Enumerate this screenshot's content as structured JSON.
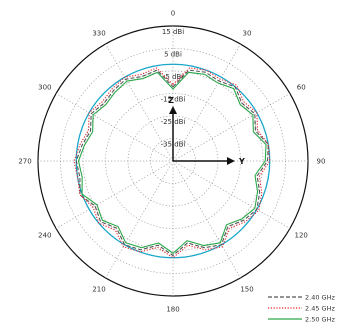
{
  "chart_data": {
    "type": "polar-line",
    "angular_unit": "deg",
    "angle_zero": "top",
    "angle_direction": "clockwise",
    "angle_ticks": [
      "0",
      "30",
      "60",
      "90",
      "120",
      "150",
      "180",
      "210",
      "240",
      "270",
      "300",
      "330"
    ],
    "angle_tick_values": [
      0,
      30,
      60,
      90,
      120,
      150,
      180,
      210,
      240,
      270,
      300,
      330
    ],
    "radial_unit": "dBi",
    "radial_range": [
      -45,
      15
    ],
    "radial_ticks": [
      15,
      5,
      -5,
      -15,
      -25,
      -35
    ],
    "radial_tick_labels": [
      "15 dBi",
      "5 dBi",
      "-5 dBi",
      "-15 dBi",
      "-25 dBi",
      "-35 dBi"
    ],
    "reference_circle": {
      "value": -2,
      "color": "#1aa7c9"
    },
    "axis_labels": {
      "up": "Z",
      "right": "Y"
    },
    "grid": true,
    "legend_position": "bottom-right",
    "series": [
      {
        "name": "2.40 GHz",
        "color": "#555555",
        "dash": "dashed",
        "angles": [
          0,
          10,
          20,
          30,
          40,
          50,
          60,
          70,
          80,
          90,
          100,
          110,
          120,
          130,
          140,
          150,
          160,
          170,
          180,
          190,
          200,
          210,
          220,
          230,
          240,
          250,
          260,
          270,
          280,
          290,
          300,
          310,
          320,
          330,
          340,
          350
        ],
        "values": [
          -12,
          -4,
          -3,
          -4,
          -2,
          -5,
          -3,
          -6,
          -2,
          -3,
          -7,
          -4,
          -2,
          -4,
          -7,
          -2,
          -4,
          -8,
          -3,
          -7,
          -3,
          -2,
          -6,
          -3,
          -5,
          -1,
          -3,
          -2,
          -4,
          -6,
          -3,
          -5,
          -4,
          -3,
          -5,
          -4
        ]
      },
      {
        "name": "2.45 GHz",
        "color": "#e0232a",
        "dash": "dotted",
        "angles": [
          0,
          10,
          20,
          30,
          40,
          50,
          60,
          70,
          80,
          90,
          100,
          110,
          120,
          130,
          140,
          150,
          160,
          170,
          180,
          190,
          200,
          210,
          220,
          230,
          240,
          250,
          260,
          270,
          280,
          290,
          300,
          310,
          320,
          330,
          340,
          350
        ],
        "values": [
          -11,
          -3,
          -2,
          -3,
          -1,
          -4,
          -2,
          -5,
          -2,
          -2,
          -6,
          -3,
          -1,
          -3,
          -6,
          -1,
          -3,
          -7,
          -2,
          -6,
          -2,
          -1,
          -5,
          -2,
          -4,
          -1,
          -2,
          -1,
          -3,
          -5,
          -2,
          -4,
          -3,
          -2,
          -4,
          -3
        ]
      },
      {
        "name": "2.50 GHz",
        "color": "#2aa84a",
        "dash": "solid",
        "angles": [
          0,
          10,
          20,
          30,
          40,
          50,
          60,
          70,
          80,
          90,
          100,
          110,
          120,
          130,
          140,
          150,
          160,
          170,
          180,
          190,
          200,
          210,
          220,
          230,
          240,
          250,
          260,
          270,
          280,
          290,
          300,
          310,
          320,
          330,
          340,
          350
        ],
        "values": [
          -13,
          -5,
          -4,
          -5,
          -3,
          -6,
          -4,
          -7,
          -3,
          -4,
          -8,
          -5,
          -3,
          -5,
          -8,
          -3,
          -5,
          -9,
          -4,
          -8,
          -4,
          -3,
          -7,
          -4,
          -6,
          -2,
          -4,
          -3,
          -5,
          -7,
          -4,
          -6,
          -5,
          -4,
          -6,
          -5
        ]
      }
    ]
  }
}
